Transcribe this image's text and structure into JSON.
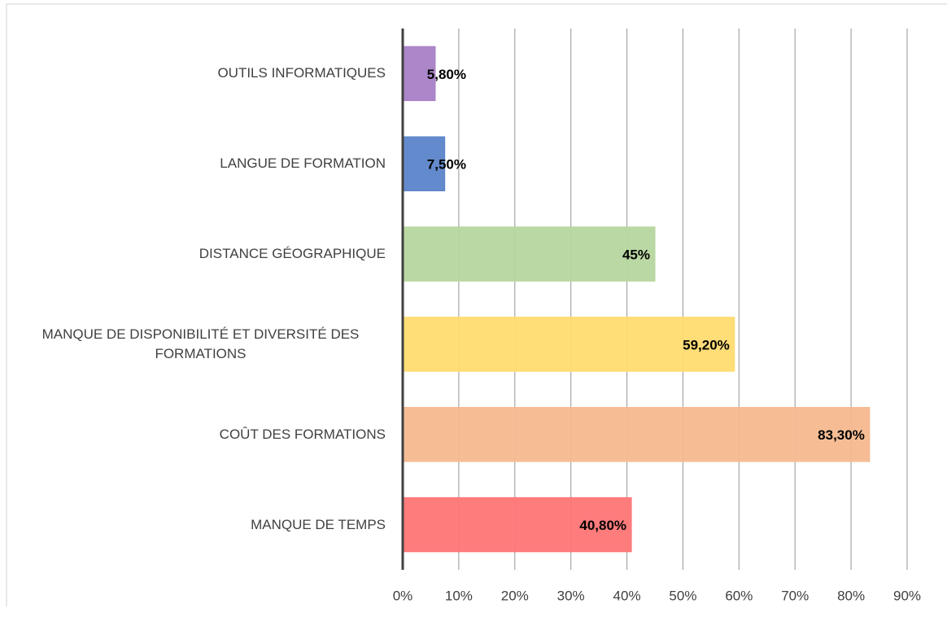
{
  "chart_data": {
    "type": "bar",
    "orientation": "horizontal",
    "categories": [
      "OUTILS INFORMATIQUES",
      "LANGUE DE FORMATION",
      "DISTANCE GÉOGRAPHIQUE",
      "MANQUE DE DISPONIBILITÉ ET DIVERSITÉ DES FORMATIONS",
      "COÛT DES FORMATIONS",
      "MANQUE DE TEMPS"
    ],
    "values": [
      5.8,
      7.5,
      45,
      59.2,
      83.3,
      40.8
    ],
    "value_labels": [
      "5,80%",
      "7,50%",
      "45%",
      "59,20%",
      "83,30%",
      "40,80%"
    ],
    "colors": [
      "#a77fc6",
      "#5b84c9",
      "#b6d69e",
      "#ffdb70",
      "#f5b98f",
      "#ff7576"
    ],
    "xlim": [
      0,
      90
    ],
    "xticks": [
      {
        "value": 0,
        "label": "0%"
      },
      {
        "value": 10,
        "label": "10%"
      },
      {
        "value": 20,
        "label": "20%"
      },
      {
        "value": 30,
        "label": "30%"
      },
      {
        "value": 40,
        "label": "40%"
      },
      {
        "value": 50,
        "label": "50%"
      },
      {
        "value": 60,
        "label": "60%"
      },
      {
        "value": 70,
        "label": "70%"
      },
      {
        "value": 80,
        "label": "80%"
      },
      {
        "value": 90,
        "label": "90%"
      }
    ],
    "grid": true
  }
}
